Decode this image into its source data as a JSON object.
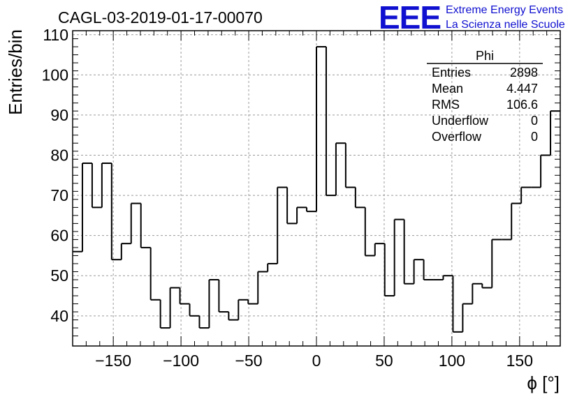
{
  "chart_data": {
    "type": "bar",
    "style": "step-histogram",
    "title": "CAGL-03-2019-01-17-00070",
    "xlabel": "ϕ [°]",
    "ylabel": "Entries/bin",
    "xlim": [
      -180,
      180
    ],
    "ylim": [
      32.5,
      111
    ],
    "bin_width": 7.2,
    "x_ticks": [
      -150,
      -100,
      -50,
      0,
      50,
      100,
      150
    ],
    "x_tick_labels": [
      "−150",
      "−100",
      "−50",
      "0",
      "50",
      "100",
      "150"
    ],
    "y_ticks": [
      40,
      50,
      60,
      70,
      80,
      90,
      100,
      110
    ],
    "y_tick_labels": [
      "40",
      "50",
      "60",
      "70",
      "80",
      "90",
      "100",
      "110"
    ],
    "grid": true,
    "values": [
      56,
      78,
      67,
      78,
      54,
      58,
      68,
      57,
      44,
      37,
      47,
      43,
      40,
      37,
      49,
      41,
      39,
      44,
      43,
      51,
      53,
      72,
      63,
      67,
      66,
      107,
      70,
      83,
      72,
      67,
      55,
      58,
      45,
      64,
      48,
      54,
      49,
      49,
      50,
      36,
      43,
      48,
      47,
      59,
      59,
      68,
      72,
      72,
      80,
      91
    ],
    "stats_box": {
      "title": "Phi",
      "rows": [
        {
          "label": "Entries",
          "value": "2898"
        },
        {
          "label": "Mean",
          "value": "4.447"
        },
        {
          "label": "RMS",
          "value": "106.6"
        },
        {
          "label": "Underflow",
          "value": "0"
        },
        {
          "label": "Overflow",
          "value": "0"
        }
      ],
      "placement": "top-right"
    }
  },
  "logo": {
    "mark": "EEE",
    "line1": "Extreme Energy Events",
    "line2": "La Scienza nelle Scuole",
    "color": "#1010d0"
  }
}
